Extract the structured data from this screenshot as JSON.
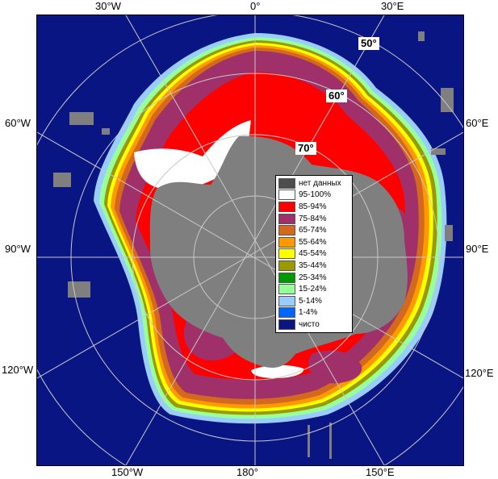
{
  "map": {
    "longitude_labels": {
      "w30": "30°W",
      "zero": "0°",
      "e30": "30°E",
      "w60": "60°W",
      "e60": "60°E",
      "w90": "90°W",
      "e90": "90°E",
      "w120": "120°W",
      "e120": "120°E",
      "w150": "150°W",
      "deg180": "180°",
      "e150": "150°E"
    },
    "latitude_labels": {
      "lat50": "50°",
      "lat60": "60°",
      "lat70": "70°"
    },
    "colors": {
      "ocean": "#0a1584",
      "land": "#7f7f7f",
      "graticule": "#c8c8c8"
    }
  },
  "legend": {
    "items": [
      {
        "label": "нет данных",
        "color": "#4d4d4d"
      },
      {
        "label": "95-100%",
        "color": "#ffffff"
      },
      {
        "label": "85-94%",
        "color": "#ff0000"
      },
      {
        "label": "75-84%",
        "color": "#a0306a"
      },
      {
        "label": "65-74%",
        "color": "#d2691e"
      },
      {
        "label": "55-64%",
        "color": "#ff9900"
      },
      {
        "label": "45-54%",
        "color": "#ffff00"
      },
      {
        "label": "35-44%",
        "color": "#999900"
      },
      {
        "label": "25-34%",
        "color": "#009900"
      },
      {
        "label": "15-24%",
        "color": "#99ff99"
      },
      {
        "label": "5-14%",
        "color": "#99ccff"
      },
      {
        "label": "1-4%",
        "color": "#0066ff"
      },
      {
        "label": "чисто",
        "color": "#0a1584"
      }
    ]
  }
}
